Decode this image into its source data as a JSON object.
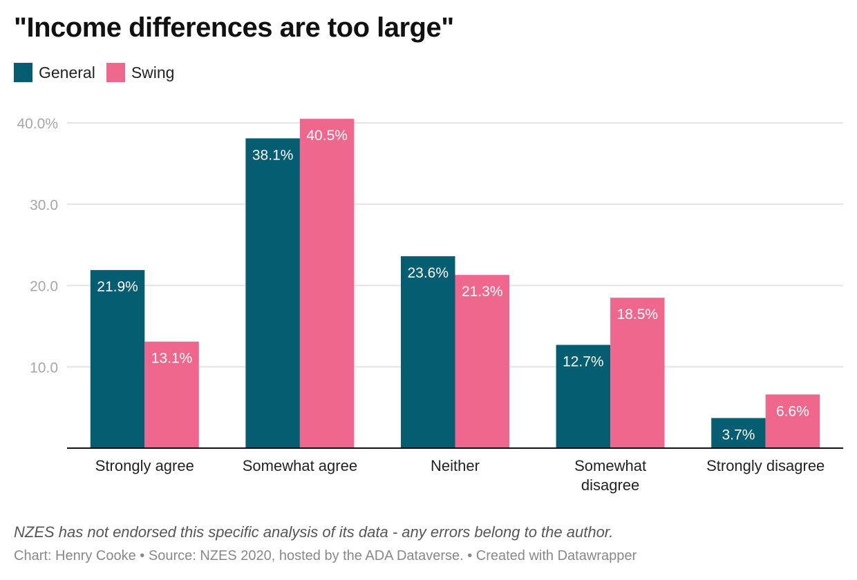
{
  "chart_data": {
    "type": "bar",
    "title": "\"Income differences are too large\"",
    "xlabel": "",
    "ylabel": "",
    "ylim": [
      0,
      40
    ],
    "yticks": [
      10,
      20,
      30,
      40
    ],
    "ytick_labels": [
      "10.0",
      "20.0",
      "30.0",
      "40.0%"
    ],
    "grid": true,
    "legend_position": "top-left",
    "categories": [
      "Strongly agree",
      "Somewhat agree",
      "Neither",
      "Somewhat disagree",
      "Strongly disagree"
    ],
    "series": [
      {
        "name": "General",
        "color": "#045d71",
        "values": [
          21.9,
          38.1,
          23.6,
          12.7,
          3.7
        ],
        "labels": [
          "21.9%",
          "38.1%",
          "23.6%",
          "12.7%",
          "3.7%"
        ]
      },
      {
        "name": "Swing",
        "color": "#f0678d",
        "values": [
          13.1,
          40.5,
          21.3,
          18.5,
          6.6
        ],
        "labels": [
          "13.1%",
          "40.5%",
          "21.3%",
          "18.5%",
          "6.6%"
        ]
      }
    ]
  },
  "notes": "NZES has not endorsed this specific analysis of its data - any errors belong to the author.",
  "credit": "Chart: Henry Cooke • Source: NZES 2020, hosted by the ADA Dataverse. • Created with Datawrapper"
}
